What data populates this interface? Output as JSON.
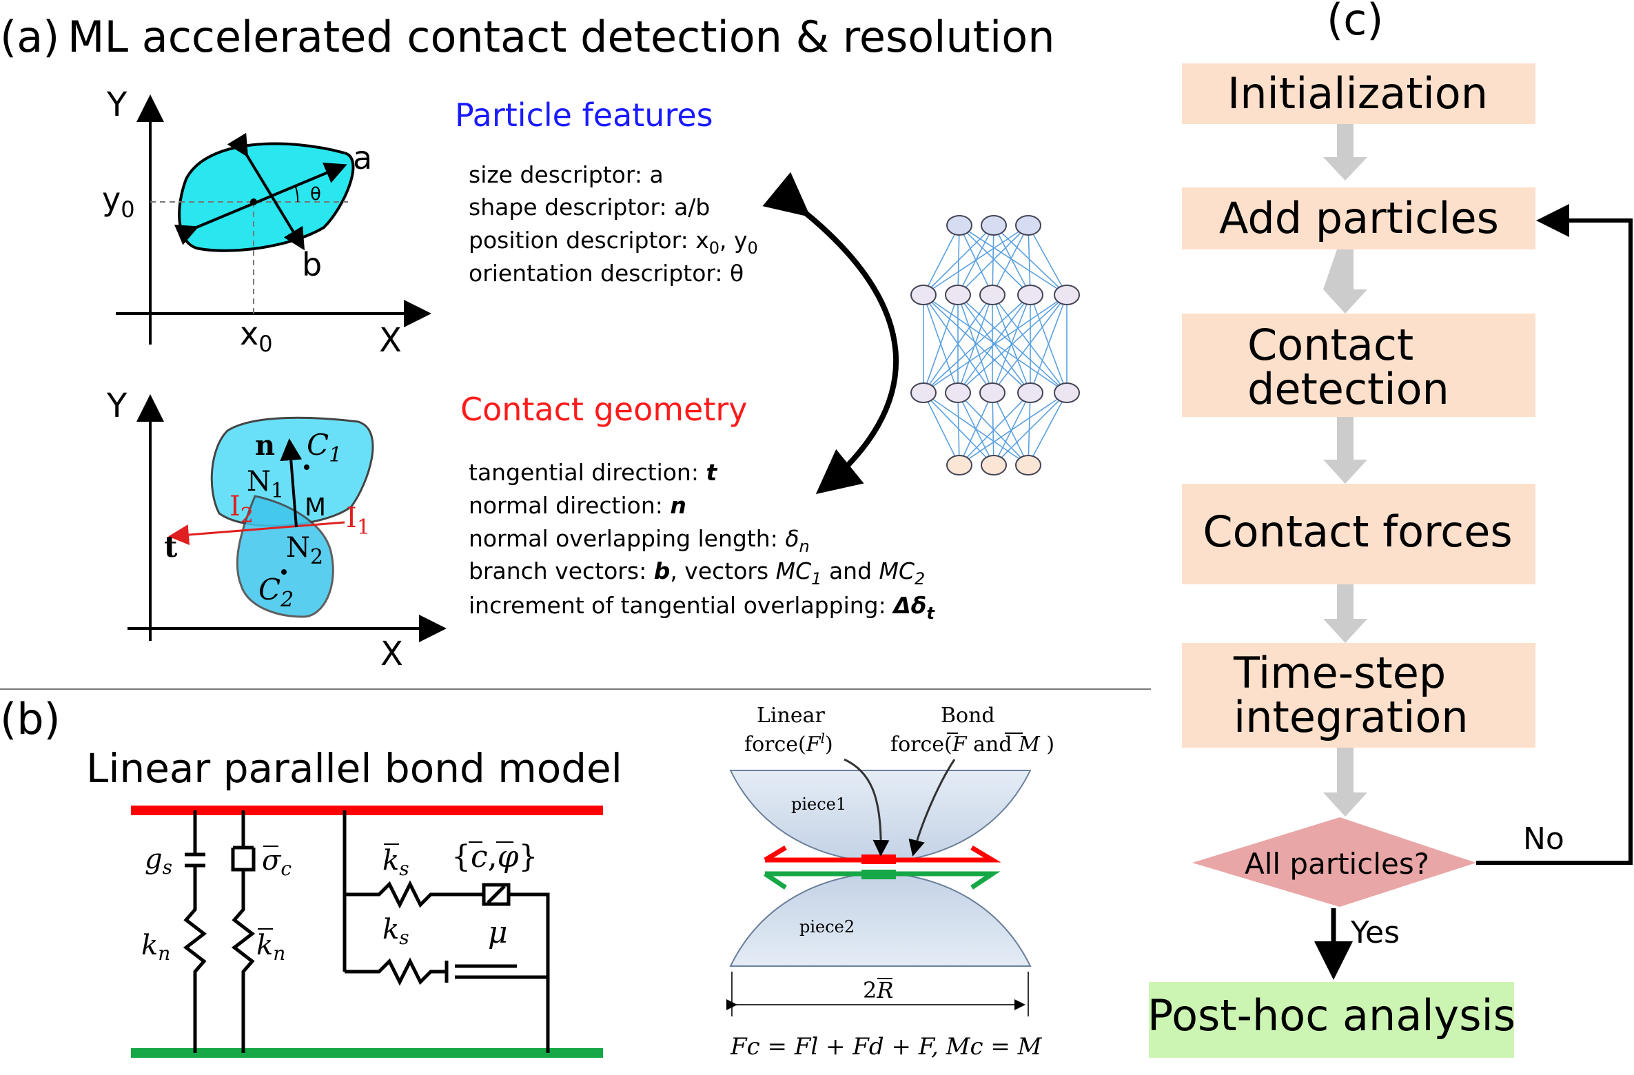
{
  "panel_a": {
    "label": "(a)",
    "title": "ML accelerated contact detection & resolution",
    "plot1": {
      "y_axis": "Y",
      "x_axis": "X",
      "y0": "y",
      "y0_sub": "0",
      "x0": "x",
      "x0_sub": "0",
      "a": "a",
      "b": "b",
      "theta": "θ"
    },
    "plot2": {
      "y_axis": "Y",
      "x_axis": "X",
      "n": "n",
      "t": "t",
      "C1": "C",
      "C1_sub": "1",
      "C2": "C",
      "C2_sub": "2",
      "N1": "N",
      "N1_sub": "1",
      "N2": "N",
      "N2_sub": "2",
      "M": "M",
      "I1": "I",
      "I1_sub": "1",
      "I2": "I",
      "I2_sub": "2"
    },
    "features": {
      "heading": "Particle features",
      "heading_color": "#1a1aff",
      "size_text": "size descriptor: a",
      "shape_text": "shape descriptor: a/b",
      "pos_pre": "position descriptor: x",
      "pos_sub1": "0",
      "pos_mid": ", y",
      "pos_sub2": "0",
      "orient_text": "orientation descriptor: θ"
    },
    "contact": {
      "heading": "Contact geometry",
      "heading_color": "#ff1a1a",
      "tang_pre": "tangential direction: ",
      "tang_sym": "t",
      "norm_pre": "normal direction: ",
      "norm_sym": "n",
      "overlap_pre": "normal overlapping length: ",
      "overlap_sym": "δ",
      "overlap_sub": "n",
      "branch_pre": "branch vectors: ",
      "branch_b": "b",
      "branch_mid": ", vectors ",
      "mc1": "MC",
      "mc1_sub": "1",
      "branch_and": " and ",
      "mc2": "MC",
      "mc2_sub": "2",
      "incr_pre": "increment of tangential overlapping: ",
      "incr_sym": "Δδ",
      "incr_sub": "t"
    }
  },
  "panel_b": {
    "label": "(b)",
    "title": "Linear parallel bond model",
    "circuit": {
      "gs": "g",
      "gs_sub": "s",
      "sigma": "σ",
      "sigma_sub": "c",
      "kn": "k",
      "kn_sub": "n",
      "knbar": "k",
      "knbar_sub": "n",
      "ksbar": "k",
      "ksbar_sub": "s",
      "ks": "k",
      "ks_sub": "s",
      "cphi_open": "{",
      "cbar": "c",
      "comma": ",",
      "phibar": "φ",
      "cphi_close": "}",
      "mu": "μ"
    },
    "bond": {
      "linear1": "Linear",
      "linear2_pre": "force(",
      "linear2_F": "F",
      "linear2_sup": "l",
      "linear2_post": ")",
      "bond1": "Bond",
      "bond2_pre": "force(",
      "bond2_F": "F",
      "bond2_and": " and ",
      "bond2_M": "M",
      "bond2_post": " )",
      "piece1": "piece1",
      "piece2": "piece2",
      "two_r_pre": "2",
      "two_r_R": "R",
      "eq": "Fc = Fl + Fd + F, Mc = M"
    }
  },
  "panel_c": {
    "label": "(c)",
    "steps": [
      "Initialization",
      "Add particles",
      "Contact detection",
      "Contact forces",
      "Time-step integration"
    ],
    "decision": "All particles?",
    "no": "No",
    "yes": "Yes",
    "final": "Post-hoc analysis",
    "step_color": "#fde0cc",
    "decision_color": "#e9a6a6",
    "final_color": "#ccf5b4"
  },
  "colors": {
    "particle_cyan": "#2ae6ee",
    "particle_blue": "#6ad6f4",
    "red_line": "#ff0000",
    "green_line": "#16a846",
    "nn_edge": "#5aa0e0"
  }
}
